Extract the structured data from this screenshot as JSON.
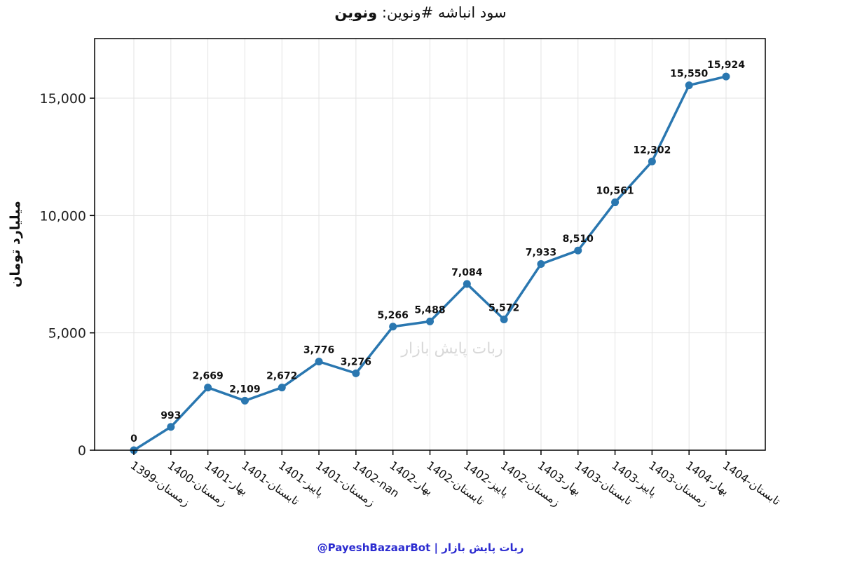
{
  "chart_data": {
    "type": "line",
    "title_prefix": "سود انباشه #ونوین:",
    "title_bold": "ونوین",
    "xlabel": "",
    "ylabel": "میلیارد تومان",
    "categories": [
      "1399-زمستان",
      "1400-زمستان",
      "1401-بهار",
      "1401-تابستان",
      "1401-پاییز",
      "1401-زمستان",
      "1402-nan",
      "1402-بهار",
      "1402-تابستان",
      "1402-پاییز",
      "1402-زمستان",
      "1403-بهار",
      "1403-تابستان",
      "1403-پاییز",
      "1403-زمستان",
      "1404-بهار",
      "1404-تابستان"
    ],
    "values": [
      0,
      993,
      2669,
      2109,
      2672,
      3776,
      3276,
      5266,
      5488,
      7084,
      5572,
      7933,
      8510,
      10561,
      12302,
      15550,
      15924
    ],
    "data_labels": [
      "0",
      "993",
      "2,669",
      "2,109",
      "2,672",
      "3,776",
      "3,276",
      "5,266",
      "5,488",
      "7,084",
      "5,572",
      "7,933",
      "8,510",
      "10,561",
      "12,302",
      "15,550",
      "15,924"
    ],
    "yticks": [
      0,
      5000,
      10000,
      15000
    ],
    "ytick_labels": [
      "0",
      "5,000",
      "10,000",
      "15,000"
    ],
    "ylim": [
      0,
      17540
    ],
    "grid": true,
    "line_color": "#2a77b0",
    "watermark": "ربات پایش بازار"
  },
  "footer": "@PayeshBazaarBot | ربات پایش بازار"
}
